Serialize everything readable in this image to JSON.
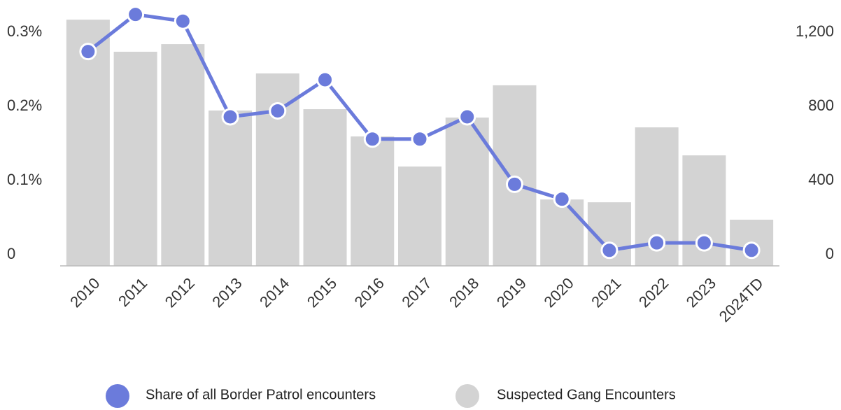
{
  "chart_data": {
    "type": "bar_line",
    "categories": [
      "2010",
      "2011",
      "2012",
      "2013",
      "2014",
      "2015",
      "2016",
      "2017",
      "2018",
      "2019",
      "2020",
      "2021",
      "2022",
      "2023",
      "2024TD"
    ],
    "series": [
      {
        "name": "Share of all Border Patrol encounters",
        "color": "#6b7bdb",
        "type": "line",
        "axis": "y",
        "values": [
          0.289,
          0.339,
          0.33,
          0.201,
          0.209,
          0.251,
          0.171,
          0.171,
          0.201,
          0.11,
          0.09,
          0.021,
          0.031,
          0.031,
          0.021
        ]
      },
      {
        "name": "Suspected Gang Encounters",
        "color": "#d3d3d3",
        "type": "bar",
        "axis": "y2",
        "values": [
          1328,
          1155,
          1196,
          838,
          1038,
          845,
          698,
          536,
          800,
          974,
          358,
          343,
          747,
          596,
          249
        ]
      }
    ],
    "ylim": [
      0,
      0.35
    ],
    "yticks": [
      0,
      {
        "value": 0.1,
        "label": "0.1%"
      },
      {
        "value": 0.2,
        "label": "0.2%"
      },
      {
        "value": 0.3,
        "label": "0.3%"
      }
    ],
    "y2lim": [
      0,
      1400
    ],
    "y2ticks": [
      0,
      400,
      800,
      {
        "value": 1200,
        "label": "1,200"
      }
    ]
  }
}
